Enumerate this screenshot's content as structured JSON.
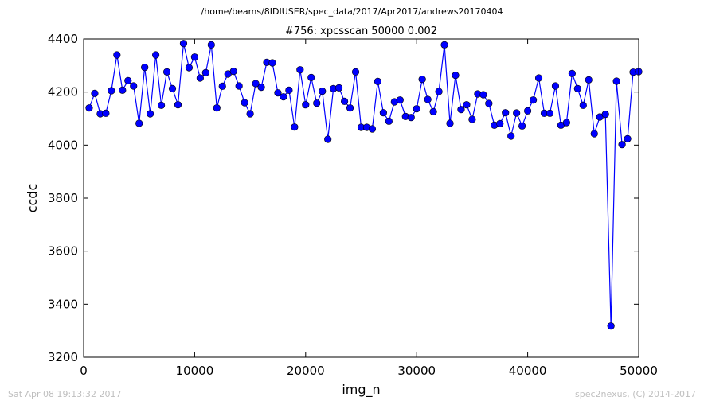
{
  "header": {
    "path": "/home/beams/8IDIUSER/spec_data/2017/Apr2017/andrews20170404"
  },
  "footer": {
    "timestamp": "Sat Apr 08 19:13:32 2017",
    "credit": "spec2nexus, (C) 2014-2017"
  },
  "colors": {
    "series": "#0000ff",
    "axis": "#000000",
    "footer": "#bfbfbf"
  },
  "chart_data": {
    "type": "line",
    "title": "#756: xpcsscan 50000 0.002",
    "xlabel": "img_n",
    "ylabel": "ccdc",
    "xlim": [
      0,
      50000
    ],
    "ylim": [
      3200,
      4400
    ],
    "xticks": [
      0,
      10000,
      20000,
      30000,
      40000,
      50000
    ],
    "yticks": [
      3200,
      3400,
      3600,
      3800,
      4000,
      4200,
      4400
    ],
    "grid": false,
    "legend": "none",
    "marker": "circle",
    "series": [
      {
        "x": [
          500,
          1000,
          1500,
          2000,
          2500,
          3000,
          3500,
          4000,
          4500,
          5000,
          5500,
          6000,
          6500,
          7000,
          7500,
          8000,
          8500,
          9000,
          9500,
          10000,
          10500,
          11000,
          11500,
          12000,
          12500,
          13000,
          13500,
          14000,
          14500,
          15000,
          15500,
          16000,
          16500,
          17000,
          17500,
          18000,
          18500,
          19000,
          19500,
          20000,
          20500,
          21000,
          21500,
          22000,
          22500,
          23000,
          23500,
          24000,
          24500,
          25000,
          25500,
          26000,
          26500,
          27000,
          27500,
          28000,
          28500,
          29000,
          29500,
          30000,
          30500,
          31000,
          31500,
          32000,
          32500,
          33000,
          33500,
          34000,
          34500,
          35000,
          35500,
          36000,
          36500,
          37000,
          37500,
          38000,
          38500,
          39000,
          39500,
          40000,
          40500,
          41000,
          41500,
          42000,
          42500,
          43000,
          43500,
          44000,
          44500,
          45000,
          45500,
          46000,
          46500,
          47000,
          47500,
          48000,
          48500,
          49000,
          49500,
          50000
        ],
        "y": [
          4140,
          4195,
          4118,
          4120,
          4205,
          4340,
          4207,
          4243,
          4223,
          4082,
          4293,
          4118,
          4340,
          4150,
          4276,
          4213,
          4152,
          4383,
          4292,
          4332,
          4253,
          4273,
          4378,
          4140,
          4222,
          4268,
          4278,
          4223,
          4160,
          4118,
          4232,
          4218,
          4312,
          4310,
          4197,
          4182,
          4207,
          4068,
          4284,
          4152,
          4255,
          4158,
          4203,
          4022,
          4213,
          4216,
          4165,
          4140,
          4276,
          4067,
          4067,
          4061,
          4240,
          4122,
          4090,
          4163,
          4170,
          4108,
          4104,
          4137,
          4248,
          4172,
          4126,
          4202,
          4378,
          4082,
          4263,
          4134,
          4152,
          4097,
          4193,
          4190,
          4157,
          4075,
          4081,
          4122,
          4034,
          4121,
          4072,
          4129,
          4170,
          4253,
          4120,
          4120,
          4223,
          4075,
          4085,
          4270,
          4213,
          4150,
          4246,
          4043,
          4106,
          4116,
          3318,
          4241,
          4002,
          4024,
          4275,
          4277
        ]
      }
    ]
  }
}
